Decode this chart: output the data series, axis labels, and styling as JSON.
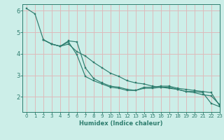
{
  "xlabel": "Humidex (Indice chaleur)",
  "bg_color": "#cceee8",
  "grid_color": "#ddbbbb",
  "line_color": "#2e7d6e",
  "xlim": [
    -0.5,
    23
  ],
  "ylim": [
    1.3,
    6.3
  ],
  "yticks": [
    2,
    3,
    4,
    5,
    6
  ],
  "xticks": [
    0,
    1,
    2,
    3,
    4,
    5,
    6,
    7,
    8,
    9,
    10,
    11,
    12,
    13,
    14,
    15,
    16,
    17,
    18,
    19,
    20,
    21,
    22,
    23
  ],
  "series": [
    {
      "x": [
        0,
        1,
        2,
        3,
        4,
        5,
        6,
        7,
        8,
        9,
        10,
        11,
        12,
        13,
        14,
        15,
        16,
        17,
        18,
        19,
        20,
        21,
        22,
        23
      ],
      "y": [
        6.1,
        5.85,
        4.65,
        4.45,
        4.35,
        4.45,
        4.1,
        3.9,
        3.6,
        3.35,
        3.1,
        2.95,
        2.75,
        2.65,
        2.6,
        2.5,
        2.45,
        2.4,
        2.35,
        2.25,
        2.2,
        2.1,
        2.05,
        1.65
      ]
    },
    {
      "x": [
        2,
        3,
        4,
        5,
        6,
        7,
        8,
        9,
        10,
        11,
        12,
        13,
        14,
        15,
        16,
        17,
        18,
        19,
        20,
        21,
        22,
        23
      ],
      "y": [
        4.65,
        4.45,
        4.35,
        4.55,
        3.95,
        2.95,
        2.75,
        2.6,
        2.45,
        2.4,
        2.3,
        2.3,
        2.4,
        2.4,
        2.45,
        2.45,
        2.35,
        2.25,
        2.25,
        2.2,
        1.7,
        1.55
      ]
    },
    {
      "x": [
        2,
        3,
        4,
        5,
        6,
        7,
        8,
        9,
        10,
        11,
        12,
        13,
        14,
        15,
        16,
        17,
        18,
        19,
        20,
        21,
        22,
        23
      ],
      "y": [
        4.65,
        4.45,
        4.35,
        4.6,
        4.55,
        3.35,
        2.85,
        2.65,
        2.5,
        2.45,
        2.35,
        2.3,
        2.45,
        2.45,
        2.5,
        2.5,
        2.4,
        2.35,
        2.3,
        2.25,
        2.2,
        1.6
      ]
    }
  ]
}
